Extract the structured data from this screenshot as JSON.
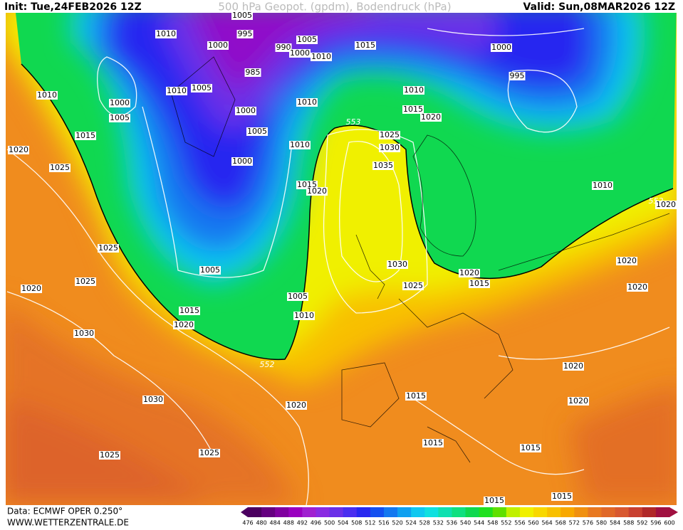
{
  "header": {
    "init": "Init: Tue,24FEB2026 12Z",
    "title": "500 hPa Geopot. (gpdm), Bodendruck (hPa)",
    "valid": "Valid: Sun,08MAR2026 12Z"
  },
  "footer": {
    "data": "Data: ECMWF OPER 0.250°",
    "site": "WWW.WETTERZENTRALE.DE"
  },
  "colorbar": {
    "values": [
      476,
      480,
      484,
      488,
      492,
      496,
      500,
      504,
      508,
      512,
      516,
      520,
      524,
      528,
      532,
      536,
      540,
      544,
      548,
      552,
      556,
      560,
      564,
      568,
      572,
      576,
      580,
      584,
      588,
      592,
      596,
      600
    ],
    "colors": [
      "#4b0060",
      "#650080",
      "#8000a0",
      "#9a00c0",
      "#a020d0",
      "#8a2be2",
      "#6a30e8",
      "#4a2ef0",
      "#2828f0",
      "#1450f0",
      "#1478f0",
      "#10a0f0",
      "#10c8f0",
      "#10e0e0",
      "#10e0b0",
      "#10e080",
      "#10d850",
      "#20e020",
      "#60e000",
      "#c0f000",
      "#f0f000",
      "#f8d800",
      "#f8c000",
      "#f8a800",
      "#f09010",
      "#e87820",
      "#e06828",
      "#d85830",
      "#c84030",
      "#b02828",
      "#a01040"
    ]
  },
  "isobar_labels": [
    "1005",
    "1010",
    "995",
    "1005",
    "1000",
    "990",
    "1000",
    "1010",
    "1015",
    "1000",
    "995",
    "985",
    "1010",
    "1005",
    "1010",
    "1000",
    "1010",
    "1005",
    "1000",
    "1010",
    "1015",
    "1020",
    "553",
    "1025",
    "1015",
    "1005",
    "1010",
    "1030",
    "1020",
    "1000",
    "1035",
    "1025",
    "1015",
    "1020",
    "1010",
    "552",
    "1020",
    "1025",
    "1030",
    "1020",
    "1005",
    "1020",
    "1015",
    "1025",
    "1020",
    "1025",
    "1020",
    "1005",
    "1015",
    "1010",
    "1020",
    "1030",
    "552",
    "1020",
    "1015",
    "1020",
    "1030",
    "1020",
    "1015",
    "1015",
    "1025",
    "1025",
    "1015",
    "1015"
  ]
}
